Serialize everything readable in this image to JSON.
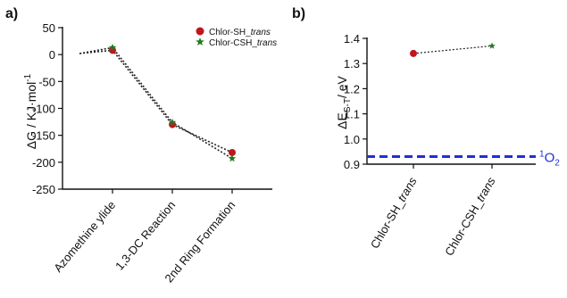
{
  "panels": {
    "a_label": "a)",
    "b_label": "b)"
  },
  "chart_data": [
    {
      "type": "line",
      "panel": "a",
      "ylabel": "ΔG / KJ·mol⁻¹",
      "ylabel_parts": {
        "main": "ΔG / KJ·mol",
        "sup": "-1"
      },
      "categories": [
        "Azomethine ylide",
        "1,3-DC Reaction",
        "2nd Ring Formation"
      ],
      "start": {
        "x": -0.55,
        "y": 2
      },
      "series": [
        {
          "name": "Chlor-SH_trans",
          "name_parts": {
            "plain": "Chlor-SH_",
            "italic": "trans"
          },
          "marker": "circle",
          "color": "#c0161c",
          "values": [
            8,
            -130,
            -182
          ]
        },
        {
          "name": "Chlor-CSH_trans",
          "name_parts": {
            "plain": "Chlor-CSH_",
            "italic": "trans"
          },
          "marker": "star",
          "color": "#1e7a1e",
          "values": [
            13,
            -126,
            -193
          ]
        }
      ],
      "yticks": [
        50,
        0,
        -50,
        -100,
        -150,
        -200,
        -250
      ],
      "ylim": [
        -250,
        50
      ],
      "grid": false,
      "legend": "top-right"
    },
    {
      "type": "scatter",
      "panel": "b",
      "ylabel": "ΔE S-T / eV",
      "ylabel_parts": {
        "main": "ΔE",
        "sub": "S-T",
        "tail": "/ eV"
      },
      "categories": [
        "Chlor-SH_trans",
        "Chlor-CSH_trans"
      ],
      "points": [
        {
          "category": "Chlor-SH_trans",
          "value": 1.34,
          "marker": "circle",
          "color": "#c0161c"
        },
        {
          "category": "Chlor-CSH_trans",
          "value": 1.37,
          "marker": "star",
          "color": "#1e7a1e"
        }
      ],
      "reference": {
        "value": 0.93,
        "label_sup": "1",
        "label_main": "O",
        "label_sub": "2",
        "color": "#1f2fd6"
      },
      "yticks": [
        1.4,
        1.3,
        1.2,
        1.1,
        1.0,
        0.9
      ],
      "ytick_labels": [
        "1.4",
        "1.3",
        "1.2",
        "1.1",
        "1.0",
        "0.9"
      ],
      "ylim": [
        0.9,
        1.4
      ],
      "grid": false
    }
  ]
}
